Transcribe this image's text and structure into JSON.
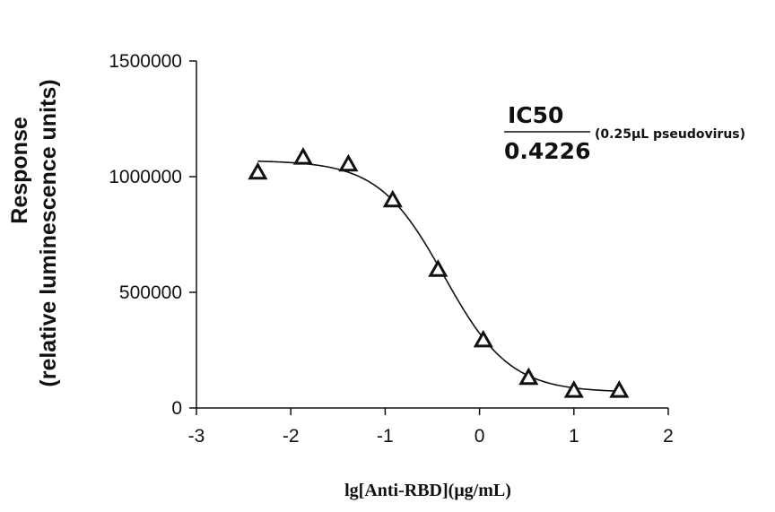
{
  "chart_data": {
    "type": "scatter",
    "title": "",
    "xlabel": "lg[Anti-RBD](μg/mL)",
    "ylabel_lines": [
      "Response",
      "(relative luminescence units)"
    ],
    "xlim": [
      -3,
      2
    ],
    "ylim": [
      0,
      1500000
    ],
    "x_ticks": [
      -3,
      -2,
      -1,
      0,
      1,
      2
    ],
    "x_tick_labels": [
      "-3",
      "-2",
      "-1",
      "0",
      "1",
      "2"
    ],
    "y_ticks": [
      0,
      500000,
      1000000,
      1500000
    ],
    "y_tick_labels": [
      "0",
      "500000",
      "1000000",
      "1500000"
    ],
    "grid": false,
    "marker": "triangle-open",
    "series": [
      {
        "name": "Anti-RBD",
        "x": [
          -2.35,
          -1.87,
          -1.39,
          -0.92,
          -0.44,
          0.04,
          0.52,
          1.0,
          1.48
        ],
        "y": [
          1015000,
          1080000,
          1050000,
          895000,
          595000,
          290000,
          128000,
          72000,
          72000
        ]
      }
    ],
    "fit_curve": {
      "model": "4PL",
      "top": 1070000,
      "bottom": 68000,
      "log_ic50": -0.374,
      "hill_slope": 1.25,
      "x_range": [
        -2.35,
        1.48
      ]
    },
    "annotation": {
      "label": "IC50",
      "value": "0.4226",
      "note": "(0.25μL pseudovirus)"
    }
  }
}
